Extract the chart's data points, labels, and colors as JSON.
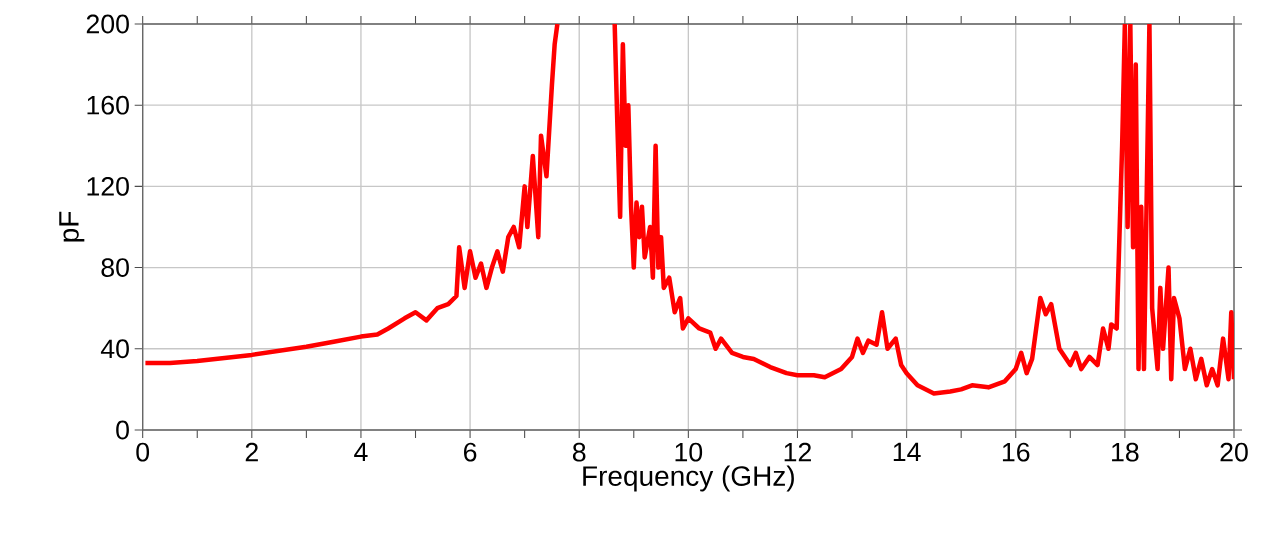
{
  "chart_data": {
    "type": "line",
    "xlabel": "Frequency (GHz)",
    "ylabel": "pF",
    "x": [
      0.05,
      0.5,
      1,
      1.5,
      2,
      2.5,
      3,
      3.5,
      4,
      4.3,
      4.5,
      4.8,
      5,
      5.2,
      5.4,
      5.6,
      5.75,
      5.8,
      5.9,
      6.0,
      6.1,
      6.2,
      6.3,
      6.4,
      6.5,
      6.6,
      6.7,
      6.8,
      6.9,
      7.0,
      7.05,
      7.15,
      7.25,
      7.3,
      7.4,
      7.5,
      7.55,
      7.6,
      8.1,
      8.65,
      8.7,
      8.75,
      8.8,
      8.85,
      8.9,
      8.95,
      9.0,
      9.05,
      9.1,
      9.15,
      9.2,
      9.3,
      9.35,
      9.4,
      9.45,
      9.5,
      9.55,
      9.65,
      9.75,
      9.85,
      9.9,
      10.0,
      10.2,
      10.4,
      10.5,
      10.6,
      10.8,
      11,
      11.2,
      11.5,
      11.8,
      12,
      12.3,
      12.5,
      12.8,
      13,
      13.1,
      13.2,
      13.3,
      13.45,
      13.55,
      13.65,
      13.8,
      13.9,
      14,
      14.2,
      14.5,
      14.8,
      15,
      15.2,
      15.5,
      15.8,
      16,
      16.1,
      16.2,
      16.3,
      16.45,
      16.55,
      16.65,
      16.8,
      17,
      17.1,
      17.2,
      17.35,
      17.5,
      17.6,
      17.7,
      17.75,
      17.85,
      17.95,
      18.0,
      18.05,
      18.1,
      18.15,
      18.2,
      18.25,
      18.3,
      18.35,
      18.45,
      18.5,
      18.6,
      18.65,
      18.7,
      18.8,
      18.85,
      18.9,
      19.0,
      19.1,
      19.2,
      19.3,
      19.4,
      19.5,
      19.6,
      19.7,
      19.8,
      19.9,
      19.95,
      20
    ],
    "series": [
      {
        "color": "#ff0000",
        "values": [
          33,
          33,
          34,
          35.5,
          37,
          39,
          41,
          43.5,
          46,
          47,
          50,
          55,
          58,
          54,
          60,
          62,
          66,
          90,
          70,
          88,
          75,
          82,
          70,
          80,
          88,
          78,
          95,
          100,
          90,
          120,
          100,
          135,
          95,
          145,
          125,
          170,
          190,
          200,
          null,
          200,
          150,
          105,
          190,
          140,
          160,
          110,
          80,
          112,
          95,
          110,
          85,
          100,
          75,
          140,
          80,
          95,
          70,
          75,
          58,
          65,
          50,
          55,
          50,
          48,
          40,
          45,
          38,
          36,
          35,
          31,
          28,
          27,
          27,
          26,
          30,
          36,
          45,
          38,
          44,
          42,
          58,
          40,
          45,
          32,
          28,
          22,
          18,
          19,
          20,
          22,
          21,
          24,
          30,
          38,
          28,
          35,
          65,
          57,
          62,
          40,
          32,
          38,
          30,
          36,
          32,
          50,
          40,
          52,
          50,
          140,
          200,
          100,
          200,
          90,
          180,
          30,
          110,
          30,
          200,
          60,
          30,
          70,
          40,
          80,
          25,
          65,
          55,
          30,
          40,
          25,
          35,
          22,
          30,
          22,
          45,
          25,
          58,
          25
        ]
      }
    ],
    "xlim": [
      0,
      20
    ],
    "ylim": [
      0,
      200
    ],
    "xticks": [
      0,
      {
        "value": 1,
        "label": null
      },
      2,
      {
        "value": 3,
        "label": null
      },
      4,
      {
        "value": 5,
        "label": null
      },
      6,
      {
        "value": 7,
        "label": null
      },
      8,
      {
        "value": 9,
        "label": null
      },
      10,
      {
        "value": 11,
        "label": null
      },
      12,
      {
        "value": 13,
        "label": null
      },
      14,
      {
        "value": 15,
        "label": null
      },
      16,
      {
        "value": 17,
        "label": null
      },
      18,
      {
        "value": 19,
        "label": null
      },
      20
    ],
    "yticks": [
      0,
      40,
      80,
      120,
      160,
      200
    ],
    "grid": true,
    "marker": "none",
    "line_style": "solid"
  }
}
